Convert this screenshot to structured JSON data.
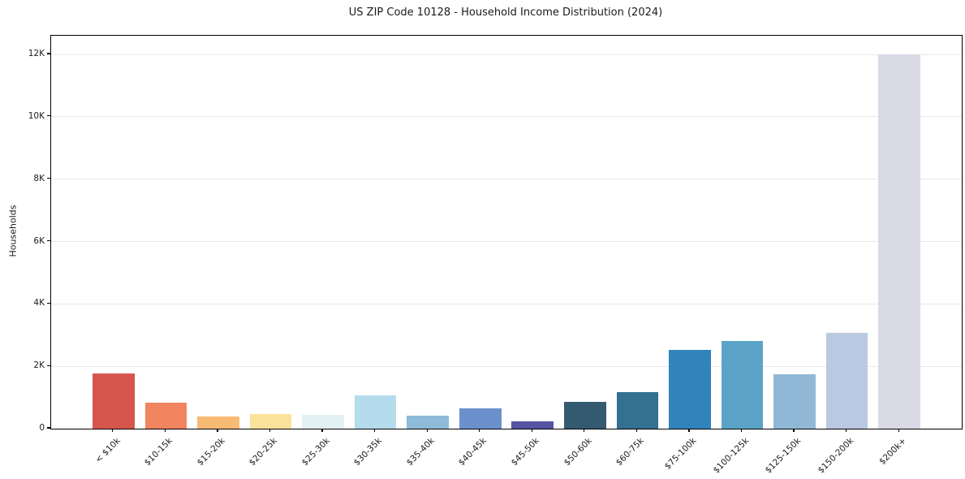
{
  "chart_data": {
    "type": "bar",
    "title": "US ZIP Code 10128 - Household Income Distribution (2024)",
    "xlabel": "",
    "ylabel": "Households",
    "categories": [
      "< $10k",
      "$10-15k",
      "$15-20k",
      "$20-25k",
      "$25-30k",
      "$30-35k",
      "$35-40k",
      "$40-45k",
      "$45-50k",
      "$50-60k",
      "$60-75k",
      "$75-100k",
      "$100-125k",
      "$125-150k",
      "$150-200k",
      "$200k+"
    ],
    "values": [
      1760,
      840,
      400,
      480,
      430,
      1060,
      410,
      660,
      230,
      870,
      1170,
      2530,
      2800,
      1740,
      3060,
      12000
    ],
    "bar_colors": [
      "#d6564d",
      "#f0855f",
      "#f8bb73",
      "#fbe29a",
      "#e4f1f4",
      "#b4dcec",
      "#8dbbd8",
      "#6c90cb",
      "#5753a3",
      "#345a70",
      "#34708f",
      "#3184bb",
      "#5ba4c7",
      "#90b8d6",
      "#bac9e2",
      "#d9dae5"
    ],
    "ylim": [
      0,
      12600
    ],
    "ytick_values": [
      0,
      2000,
      4000,
      6000,
      8000,
      10000,
      12000
    ],
    "ytick_labels": [
      "0",
      "2K",
      "4K",
      "6K",
      "8K",
      "10K",
      "12K"
    ],
    "grid": "horizontal",
    "legend": "none",
    "background_color": "#ffffff",
    "axis_color": "#000000",
    "grid_color": "#e8e8e8"
  }
}
